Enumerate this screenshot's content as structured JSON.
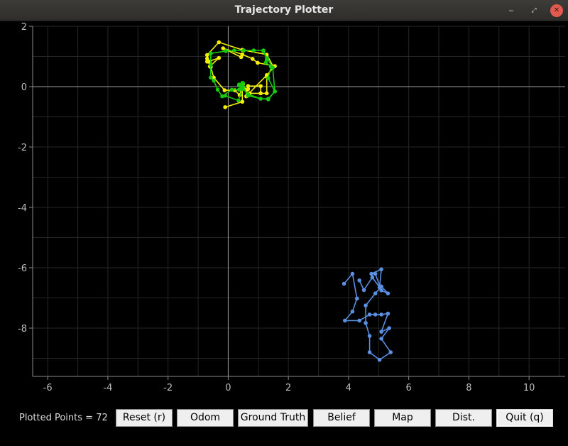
{
  "window": {
    "title": "Trajectory Plotter",
    "minimize_glyph": "‒",
    "maximize_glyph": "⤢",
    "close_glyph": "✕"
  },
  "controls": {
    "plotted_label": "Plotted Points = 72",
    "buttons": [
      "Reset (r)",
      "Odom",
      "Ground Truth",
      "Belief",
      "Map",
      "Dist.",
      "Quit (q)"
    ]
  },
  "colors": {
    "odom": "#f5f000",
    "ground_truth": "#17c90f",
    "belief": "#5b8fe0",
    "axis": "#8a8a8a",
    "grid": "#262626"
  },
  "chart_data": {
    "type": "scatter",
    "xlim": [
      -6.5,
      11.2
    ],
    "ylim": [
      -9.6,
      2.0
    ],
    "xticks": [
      -6,
      -4,
      -2,
      0,
      2,
      4,
      6,
      8,
      10
    ],
    "yticks": [
      -8,
      -6,
      -4,
      -2,
      0,
      2
    ],
    "grid": true,
    "series": [
      {
        "color": "#f5f000",
        "points": [
          [
            -0.1,
            -0.68
          ],
          [
            0.47,
            -0.5
          ],
          [
            0.47,
            -0.08
          ],
          [
            0.66,
            -0.08
          ],
          [
            0.66,
            0.02
          ],
          [
            1.08,
            0.02
          ],
          [
            1.08,
            -0.22
          ],
          [
            0.71,
            -0.22
          ],
          [
            1.28,
            -0.22
          ],
          [
            1.28,
            0.33
          ],
          [
            1.5,
            0.66
          ],
          [
            1.28,
            1.06
          ],
          [
            0.47,
            1.22
          ],
          [
            -0.31,
            1.47
          ],
          [
            -0.7,
            1.05
          ],
          [
            -0.7,
            0.93
          ],
          [
            -0.7,
            0.83
          ],
          [
            -0.61,
            0.83
          ],
          [
            -0.61,
            0.67
          ],
          [
            -0.31,
            0.95
          ],
          [
            -0.67,
            0.83
          ],
          [
            -0.58,
            0.65
          ],
          [
            -0.48,
            0.3
          ],
          [
            -0.12,
            -0.12
          ],
          [
            0.22,
            -0.12
          ],
          [
            0.38,
            -0.28
          ],
          [
            0.49,
            0.08
          ],
          [
            0.6,
            -0.12
          ],
          [
            0.6,
            -0.32
          ],
          [
            1.28,
            0.38
          ],
          [
            1.55,
            0.68
          ],
          [
            0.98,
            0.79
          ],
          [
            0.81,
            0.92
          ],
          [
            0.47,
            1.07
          ],
          [
            -0.17,
            1.27
          ],
          [
            0.43,
            0.98
          ]
        ]
      },
      {
        "color": "#17c90f",
        "points": [
          [
            -0.1,
            -0.3
          ],
          [
            0.34,
            -0.46
          ],
          [
            0.47,
            -0.08
          ],
          [
            0.47,
            0.12
          ],
          [
            0.36,
            0.04
          ],
          [
            0.36,
            0.07
          ],
          [
            0.66,
            -0.25
          ],
          [
            1.08,
            -0.4
          ],
          [
            1.33,
            -0.4
          ],
          [
            1.55,
            -0.16
          ],
          [
            1.33,
            0.28
          ],
          [
            1.42,
            0.66
          ],
          [
            1.25,
            0.8
          ],
          [
            1.28,
            0.9
          ],
          [
            1.17,
            1.2
          ],
          [
            0.85,
            1.2
          ],
          [
            0.52,
            1.2
          ],
          [
            0.2,
            1.2
          ],
          [
            -0.08,
            1.18
          ],
          [
            -0.58,
            1.1
          ],
          [
            -0.58,
            0.72
          ],
          [
            -0.58,
            0.3
          ],
          [
            -0.48,
            0.2
          ],
          [
            -0.35,
            -0.1
          ],
          [
            -0.2,
            -0.32
          ],
          [
            0.12,
            -0.1
          ],
          [
            0.36,
            -0.1
          ],
          [
            0.49,
            0.12
          ],
          [
            0.49,
            0.0
          ],
          [
            0.66,
            -0.3
          ],
          [
            1.08,
            -0.4
          ],
          [
            1.33,
            -0.42
          ],
          [
            1.55,
            -0.16
          ],
          [
            1.48,
            0.63
          ],
          [
            1.29,
            0.94
          ],
          [
            1.17,
            1.18
          ]
        ]
      },
      {
        "color": "#5b8fe0",
        "points": [
          [
            3.85,
            -6.53
          ],
          [
            4.13,
            -6.2
          ],
          [
            4.28,
            -7.02
          ],
          [
            4.13,
            -7.45
          ],
          [
            3.88,
            -7.75
          ],
          [
            4.36,
            -7.75
          ],
          [
            4.7,
            -7.55
          ],
          [
            4.89,
            -7.55
          ],
          [
            5.09,
            -7.55
          ],
          [
            5.31,
            -7.52
          ],
          [
            5.09,
            -8.12
          ],
          [
            5.35,
            -8.0
          ],
          [
            5.09,
            -8.35
          ],
          [
            5.4,
            -8.8
          ],
          [
            5.03,
            -9.05
          ],
          [
            4.7,
            -8.8
          ],
          [
            4.7,
            -8.26
          ],
          [
            4.57,
            -7.83
          ],
          [
            4.57,
            -7.25
          ],
          [
            4.89,
            -6.85
          ],
          [
            5.09,
            -6.62
          ],
          [
            5.31,
            -6.85
          ],
          [
            5.09,
            -6.75
          ],
          [
            4.89,
            -6.2
          ],
          [
            4.76,
            -6.2
          ],
          [
            5.09,
            -6.05
          ],
          [
            5.03,
            -6.65
          ],
          [
            4.79,
            -6.32
          ],
          [
            4.51,
            -6.74
          ],
          [
            4.36,
            -6.42
          ]
        ]
      }
    ]
  }
}
